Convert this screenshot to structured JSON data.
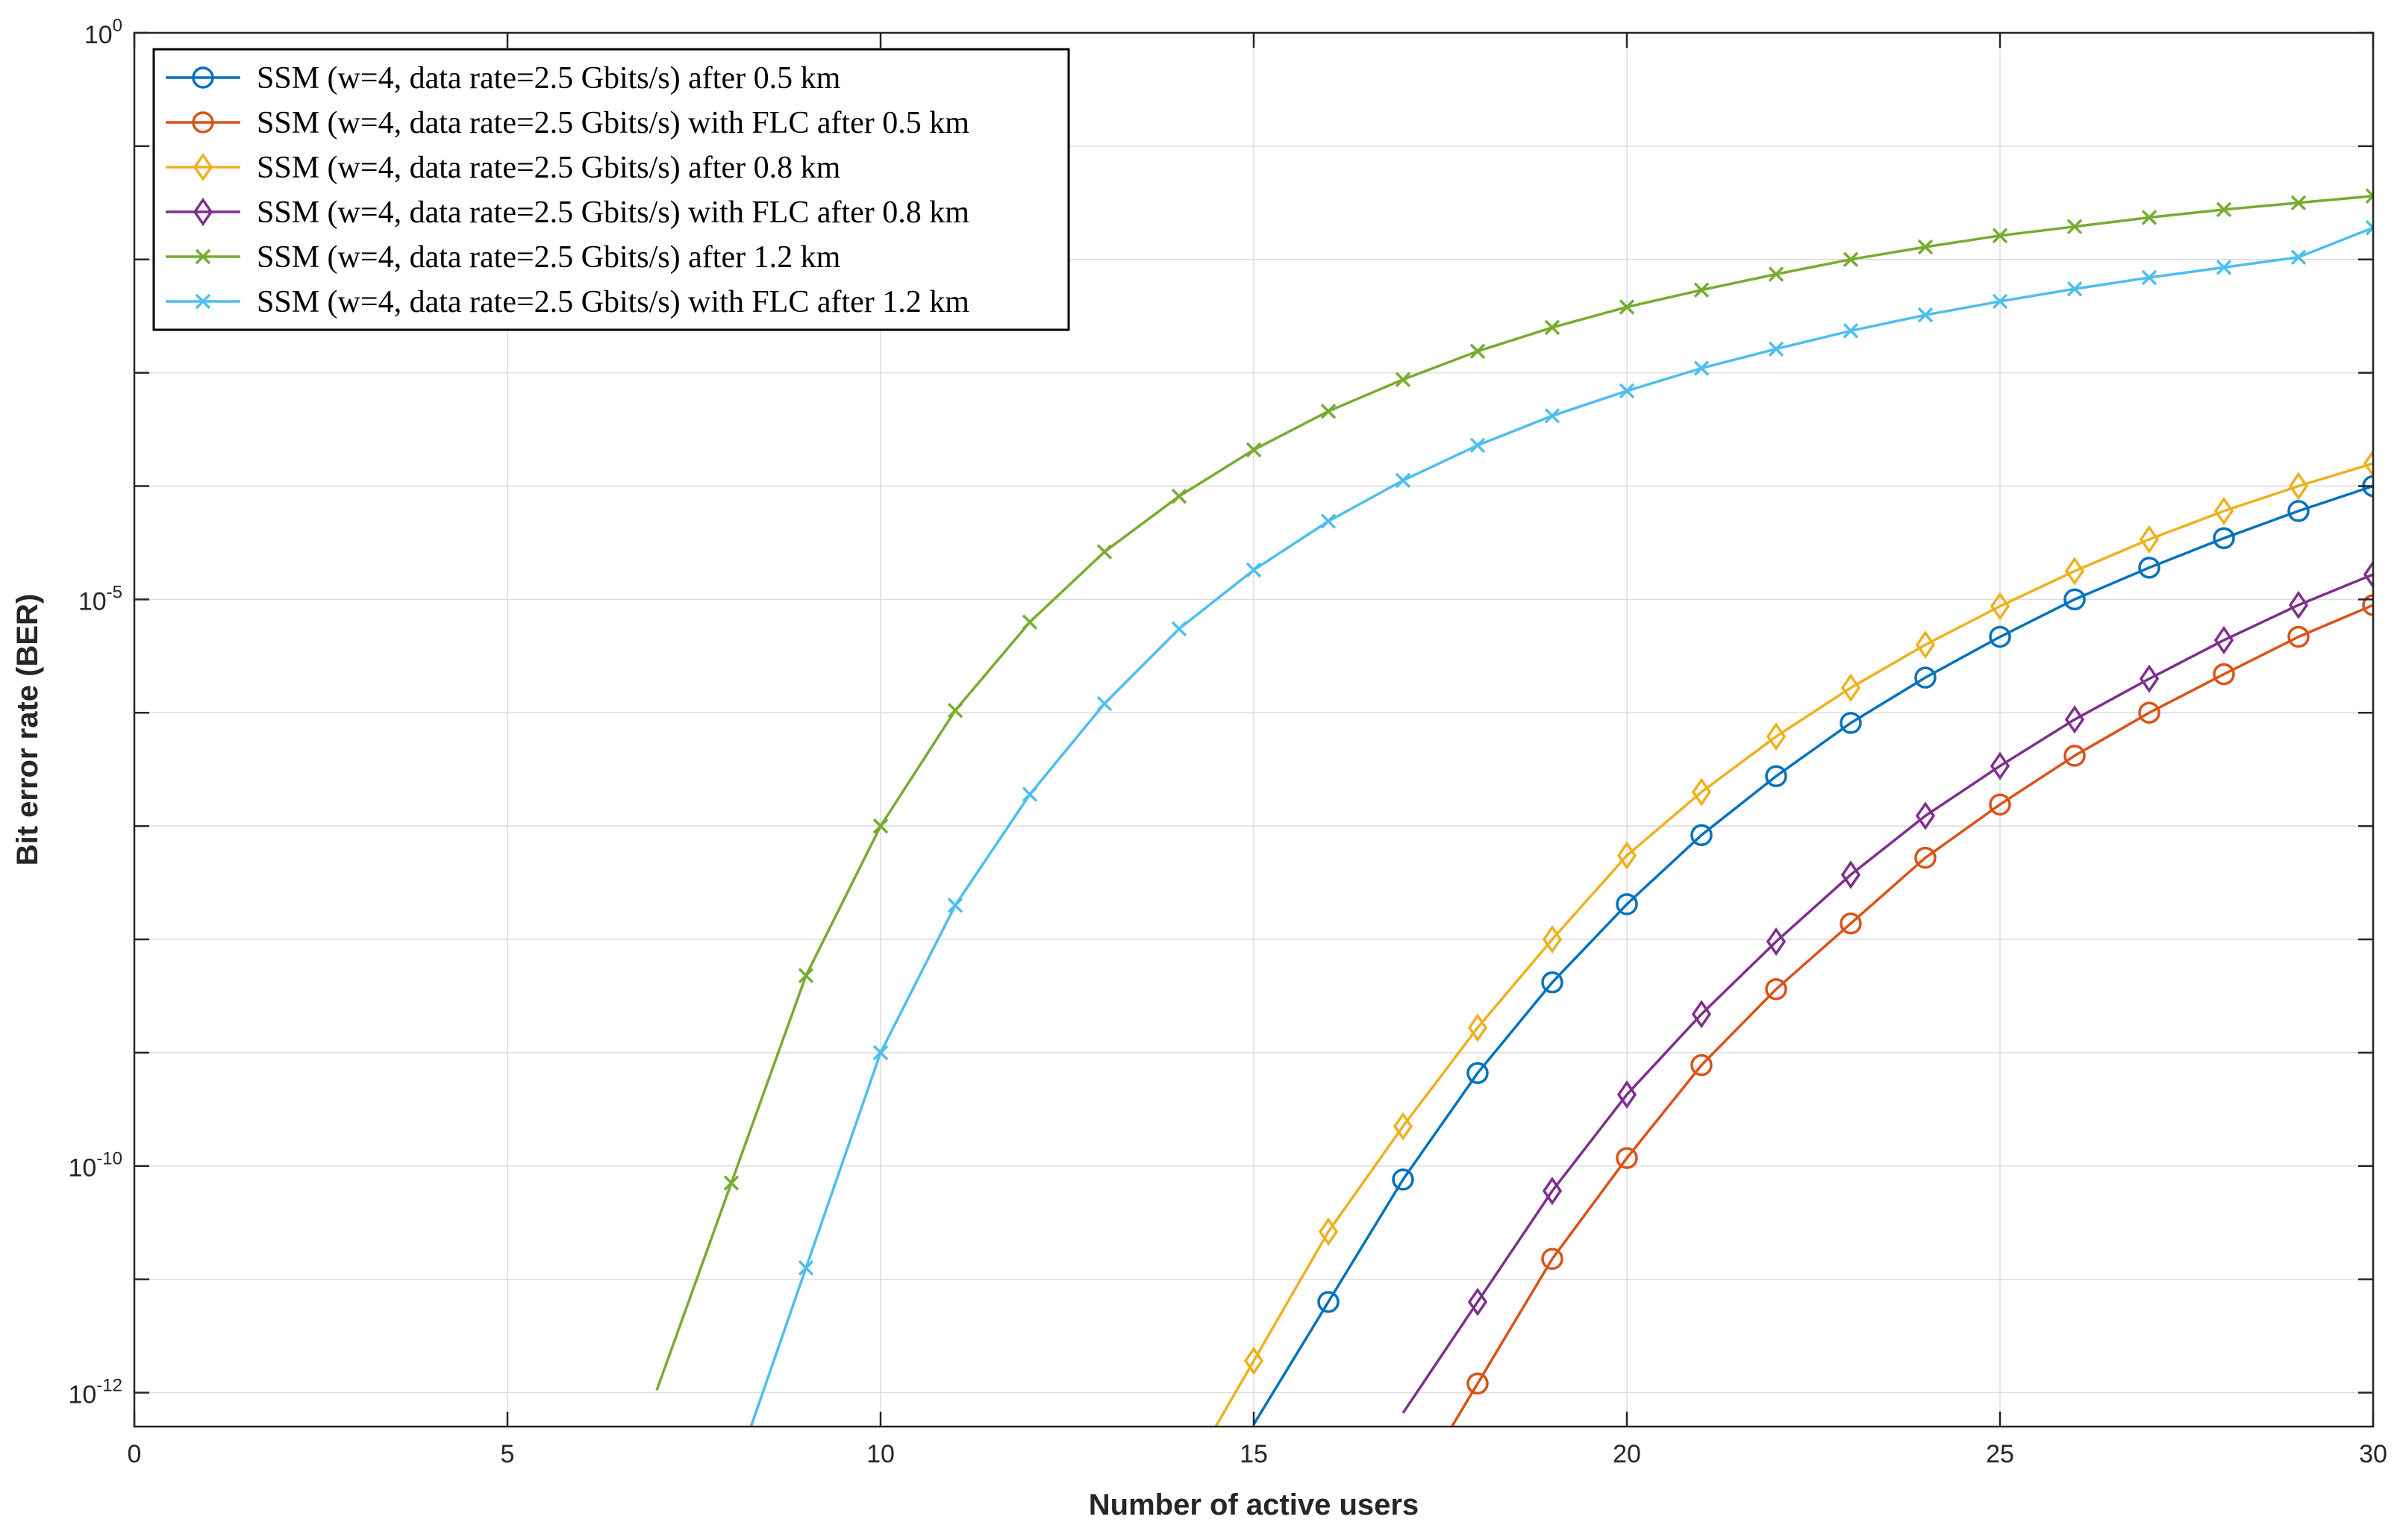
{
  "chart_data": {
    "type": "line",
    "xlabel": "Number of active users",
    "ylabel": "Bit error rate (BER)",
    "xlim": [
      0,
      30
    ],
    "ylim_log10": [
      -12.3,
      0
    ],
    "y_scale": "log",
    "grid": true,
    "legend_placement": "top-left",
    "x_ticks": [
      0,
      5,
      10,
      15,
      20,
      25,
      30
    ],
    "y_ticks": [
      {
        "exp": 0,
        "base": "10",
        "sup": "0"
      },
      {
        "exp": -5,
        "base": "10",
        "sup": "-5"
      },
      {
        "exp": -10,
        "base": "10",
        "sup": "-10"
      },
      {
        "exp": -12,
        "base": "10",
        "sup": "-12"
      }
    ],
    "series": [
      {
        "name": "SSM (w=4, data rate=2.5 Gbits/s) after 0.5 km",
        "color": "#0072BD",
        "marker": "circle",
        "x": [
          16,
          17,
          18,
          19,
          20,
          21,
          22,
          23,
          24,
          25,
          26,
          27,
          28,
          29,
          30
        ],
        "log10_y": [
          -11.2,
          -10.12,
          -9.18,
          -8.38,
          -7.69,
          -7.08,
          -6.56,
          -6.09,
          -5.69,
          -5.33,
          -5.0,
          -4.72,
          -4.46,
          -4.22,
          -4.0
        ]
      },
      {
        "name": "SSM (w=4, data rate=2.5 Gbits/s) with FLC after 0.5 km",
        "color": "#D95319",
        "marker": "circle",
        "x": [
          18,
          19,
          20,
          21,
          22,
          23,
          24,
          25,
          26,
          27,
          28,
          29,
          30
        ],
        "log10_y": [
          -11.92,
          -10.82,
          -9.93,
          -9.11,
          -8.44,
          -7.86,
          -7.28,
          -6.81,
          -6.38,
          -6.0,
          -5.66,
          -5.33,
          -5.05
        ]
      },
      {
        "name": "SSM (w=4, data rate=2.5 Gbits/s) after 0.8 km",
        "color": "#EDB120",
        "marker": "diamond",
        "x": [
          15,
          16,
          17,
          18,
          19,
          20,
          21,
          22,
          23,
          24,
          25,
          26,
          27,
          28,
          29,
          30
        ],
        "log10_y": [
          -11.72,
          -10.58,
          -9.65,
          -8.78,
          -8.0,
          -7.26,
          -6.7,
          -6.21,
          -5.78,
          -5.4,
          -5.06,
          -4.75,
          -4.47,
          -4.22,
          -4.0,
          -3.8
        ]
      },
      {
        "name": "SSM (w=4, data rate=2.5 Gbits/s) with FLC after 0.8 km",
        "color": "#7E2F8E",
        "marker": "diamond",
        "x": [
          18,
          19,
          20,
          21,
          22,
          23,
          24,
          25,
          26,
          27,
          28,
          29,
          30
        ],
        "log10_y": [
          -11.2,
          -10.22,
          -9.37,
          -8.66,
          -8.02,
          -7.43,
          -6.91,
          -6.47,
          -6.06,
          -5.7,
          -5.36,
          -5.05,
          -4.78
        ]
      },
      {
        "name": "SSM (w=4, data rate=2.5 Gbits/s) after 1.2 km",
        "color": "#77AC30",
        "marker": "x",
        "x": [
          8,
          9,
          10,
          11,
          12,
          13,
          14,
          15,
          16,
          17,
          18,
          19,
          20,
          21,
          22,
          23,
          24,
          25,
          26,
          27,
          28,
          29,
          30
        ],
        "log10_y": [
          -10.15,
          -8.32,
          -7.0,
          -5.98,
          -5.2,
          -4.58,
          -4.09,
          -3.68,
          -3.34,
          -3.06,
          -2.81,
          -2.6,
          -2.42,
          -2.27,
          -2.13,
          -2.0,
          -1.89,
          -1.79,
          -1.71,
          -1.63,
          -1.56,
          -1.5,
          -1.44
        ]
      },
      {
        "name": "SSM (w=4, data rate=2.5 Gbits/s) with FLC after 1.2 km",
        "color": "#4DBEEE",
        "marker": "x",
        "x": [
          9,
          10,
          11,
          12,
          13,
          14,
          15,
          16,
          17,
          18,
          19,
          20,
          21,
          22,
          23,
          24,
          25,
          26,
          27,
          28,
          29,
          30
        ],
        "log10_y": [
          -10.9,
          -9.0,
          -7.7,
          -6.72,
          -5.92,
          -5.26,
          -4.74,
          -4.31,
          -3.95,
          -3.64,
          -3.38,
          -3.16,
          -2.96,
          -2.79,
          -2.63,
          -2.49,
          -2.37,
          -2.26,
          -2.16,
          -2.07,
          -1.98,
          -1.72
        ]
      }
    ]
  }
}
